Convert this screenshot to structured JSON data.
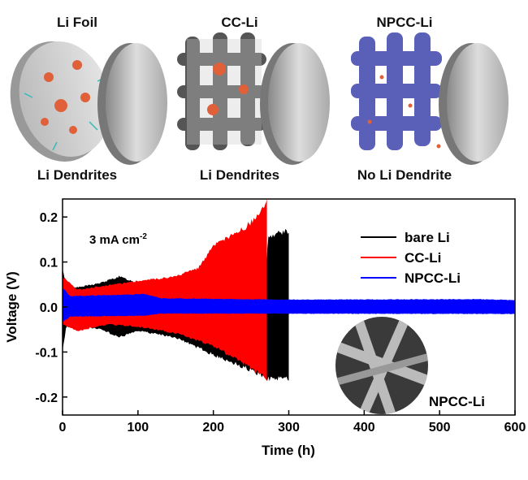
{
  "illustration": {
    "panels": [
      {
        "title": "Li Foil",
        "caption": "Li Dendrites"
      },
      {
        "title": "CC-Li",
        "caption": "Li Dendrites"
      },
      {
        "title": "NPCC-Li",
        "caption": "No Li Dendrite"
      }
    ]
  },
  "chart_data": {
    "type": "area",
    "xlabel": "Time (h)",
    "ylabel": "Voltage (V)",
    "xlim": [
      0,
      600
    ],
    "ylim": [
      -0.24,
      0.24
    ],
    "xticks": [
      "0",
      "100",
      "200",
      "300",
      "400",
      "500",
      "600"
    ],
    "xtick_values": [
      0,
      100,
      200,
      300,
      400,
      500,
      600
    ],
    "yticks": [
      "0.2",
      "0.1",
      "0.0",
      "-0.1",
      "-0.2"
    ],
    "ytick_values": [
      0.2,
      0.1,
      0.0,
      -0.1,
      -0.2
    ],
    "annotation": {
      "text": "3 mA cm",
      "sup": "-2"
    },
    "inset_label": "NPCC-Li",
    "legend_position": "top-right",
    "series": [
      {
        "name": "bare Li",
        "color": "#000000",
        "upper": [
          [
            0,
            0.085
          ],
          [
            5,
            0.05
          ],
          [
            20,
            0.045
          ],
          [
            50,
            0.055
          ],
          [
            75,
            0.07
          ],
          [
            100,
            0.055
          ],
          [
            130,
            0.055
          ],
          [
            150,
            0.06
          ],
          [
            180,
            0.07
          ],
          [
            270,
            0.07
          ],
          [
            272,
            0.16
          ],
          [
            285,
            0.17
          ],
          [
            300,
            0.175
          ]
        ],
        "lower": [
          [
            0,
            -0.1
          ],
          [
            5,
            -0.045
          ],
          [
            50,
            -0.05
          ],
          [
            75,
            -0.07
          ],
          [
            100,
            -0.055
          ],
          [
            150,
            -0.07
          ],
          [
            200,
            -0.11
          ],
          [
            250,
            -0.145
          ],
          [
            272,
            -0.165
          ],
          [
            285,
            -0.165
          ],
          [
            300,
            -0.165
          ]
        ]
      },
      {
        "name": "CC-Li",
        "color": "#ff0000",
        "upper": [
          [
            0,
            0.07
          ],
          [
            20,
            0.04
          ],
          [
            60,
            0.05
          ],
          [
            100,
            0.06
          ],
          [
            150,
            0.07
          ],
          [
            180,
            0.09
          ],
          [
            200,
            0.14
          ],
          [
            240,
            0.18
          ],
          [
            260,
            0.21
          ],
          [
            271,
            0.24
          ]
        ],
        "lower": [
          [
            0,
            -0.04
          ],
          [
            20,
            -0.055
          ],
          [
            60,
            -0.04
          ],
          [
            100,
            -0.045
          ],
          [
            150,
            -0.06
          ],
          [
            200,
            -0.09
          ],
          [
            240,
            -0.13
          ],
          [
            271,
            -0.165
          ]
        ]
      },
      {
        "name": "NPCC-Li",
        "color": "#0000ff",
        "upper": [
          [
            0,
            0.045
          ],
          [
            10,
            0.025
          ],
          [
            110,
            0.03
          ],
          [
            130,
            0.02
          ],
          [
            300,
            0.017
          ],
          [
            550,
            0.018
          ],
          [
            600,
            0.016
          ]
        ],
        "lower": [
          [
            0,
            -0.035
          ],
          [
            10,
            -0.022
          ],
          [
            110,
            -0.02
          ],
          [
            130,
            -0.015
          ],
          [
            600,
            -0.016
          ]
        ]
      }
    ]
  }
}
